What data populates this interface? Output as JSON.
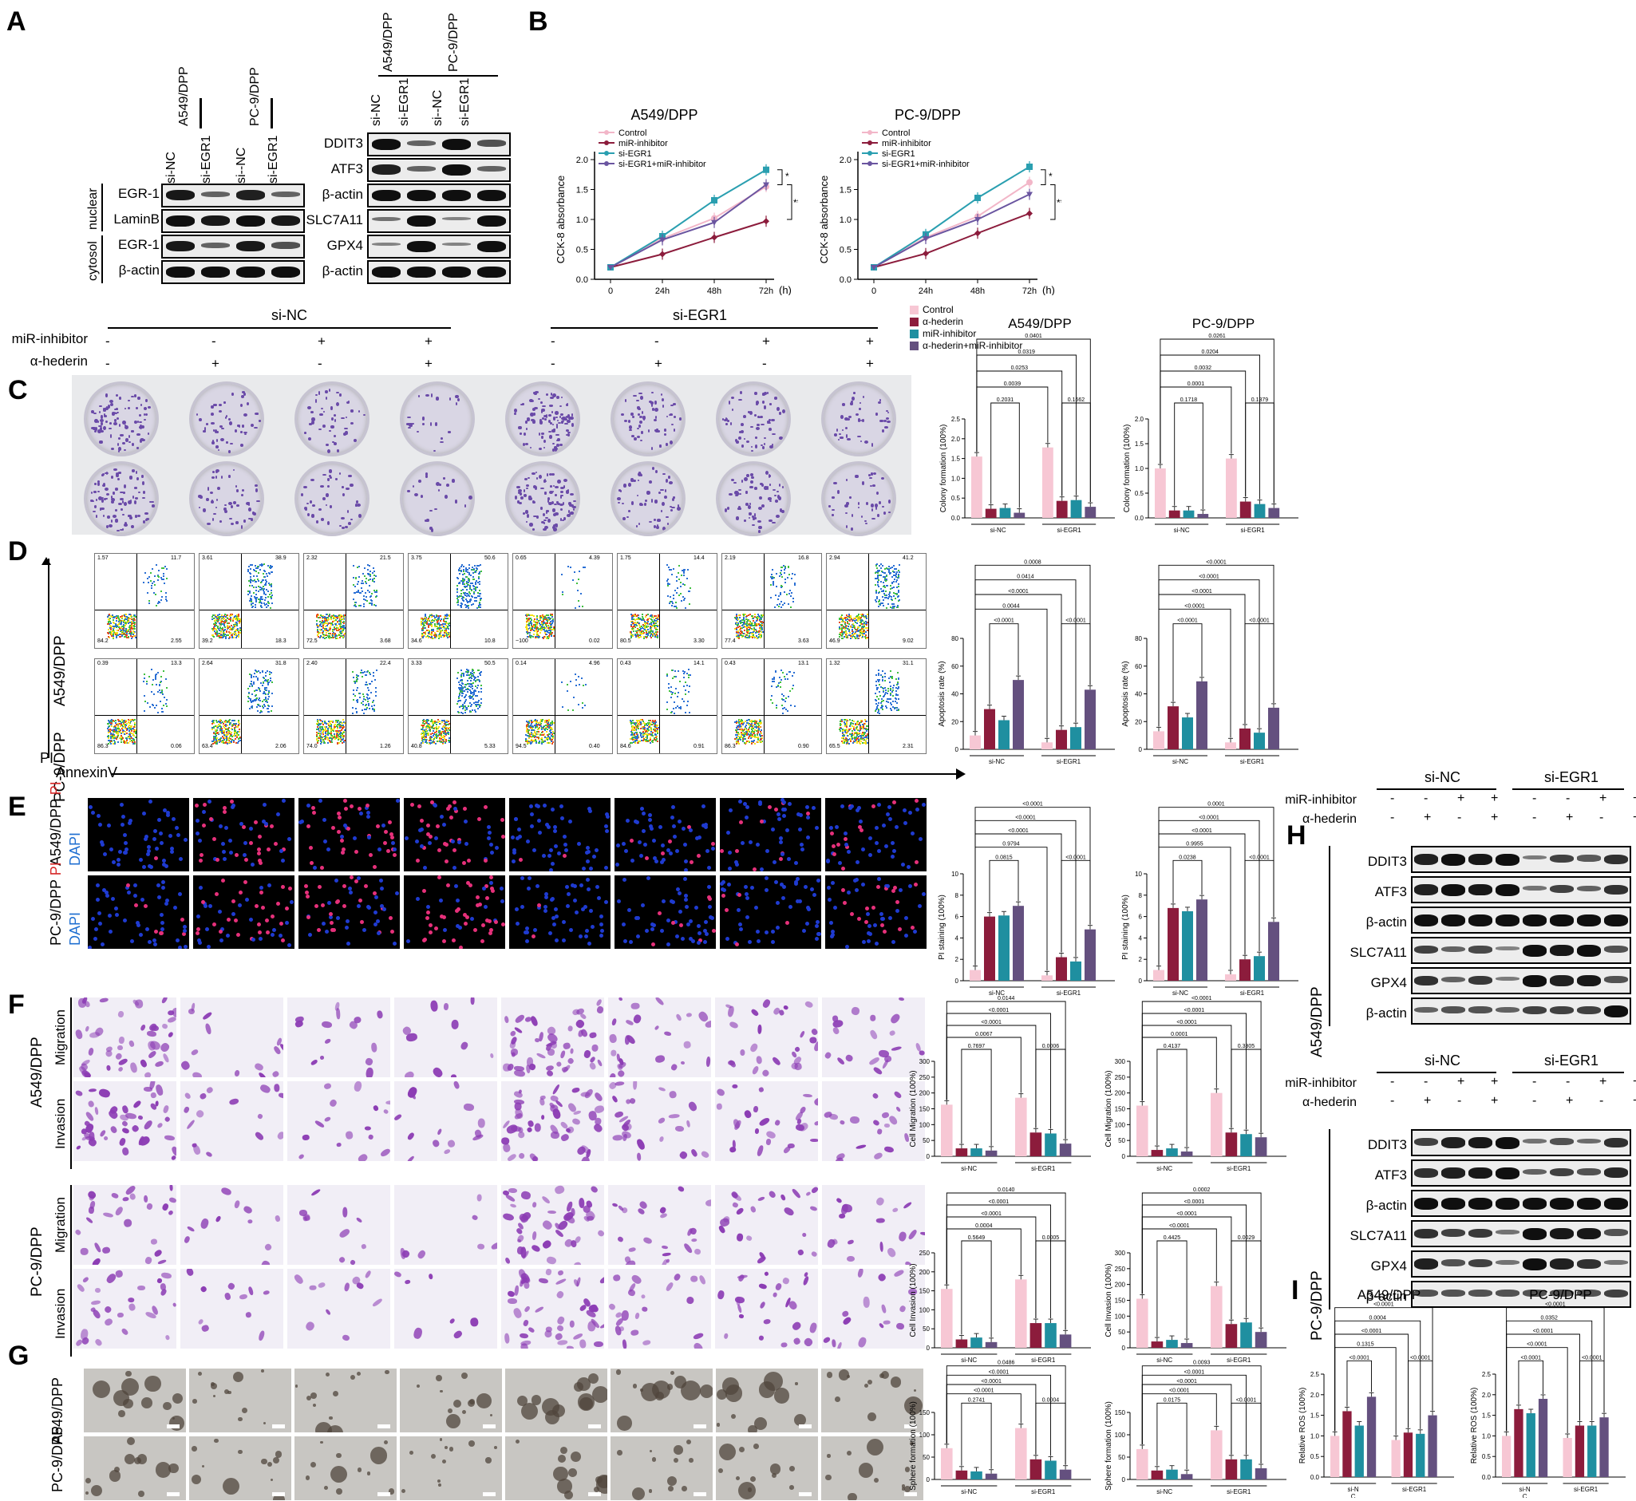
{
  "panels": {
    "A": "A",
    "B": "B",
    "C": "C",
    "D": "D",
    "E": "E",
    "F": "F",
    "G": "G",
    "H": "H",
    "I": "I"
  },
  "common": {
    "si_NC": "si-NC",
    "si_EGR1": "si-EGR1",
    "si_dash_NC": "si--NC",
    "beta_actin": "β-actin",
    "nuclear": "nuclear",
    "cytosol": "cytosol",
    "EGR1": "EGR-1",
    "LaminB": "LaminB",
    "DDIT3": "DDIT3",
    "ATF3": "ATF3",
    "SLC7A11": "SLC7A11",
    "GPX4": "GPX4",
    "A549": "A549/DPP",
    "PC9": "PC-9/DPP",
    "miR_inhibitor": "miR-inhibitor",
    "hederin": "α-hederin",
    "plus": "+",
    "minus": "-",
    "migration": "Migration",
    "invasion": "Invasion",
    "PI": "PI",
    "DAPI": "DAPI",
    "AnnexinV": "AnnexinV",
    "siN": "si-N",
    "C": "C"
  },
  "legendC": [
    "Control",
    "α-hederin",
    "miR-inhibitor",
    "α-hederin+miR-inhibitor"
  ],
  "colors": {
    "control": "#f7c7d4",
    "hederin": "#8c1c3c",
    "inhibitor": "#1f8fa0",
    "combo": "#64507f",
    "cckControl": "#f2b6c8",
    "cckInh": "#8c1c3c",
    "cckEgr": "#2a9fb0",
    "cckCombo": "#6a55a0",
    "crystal": "#6a4aa8"
  },
  "chart_data": [
    {
      "type": "line",
      "title": "A549/DPP",
      "ylabel": "CCK-8 absorbance",
      "xlabel": "(h)",
      "x": [
        "0",
        "24h",
        "48h",
        "72h"
      ],
      "ylim": [
        0,
        2.0
      ],
      "yticks": [
        "0.0",
        "0.5",
        "1.0",
        "1.5",
        "2.0"
      ],
      "series": [
        {
          "name": "Control",
          "values": [
            0.2,
            0.68,
            1.02,
            1.55
          ]
        },
        {
          "name": "miR-inhibitor",
          "values": [
            0.2,
            0.42,
            0.7,
            0.97
          ]
        },
        {
          "name": "si-EGR1",
          "values": [
            0.2,
            0.72,
            1.32,
            1.83
          ]
        },
        {
          "name": "si-EGR1+miR-inhibitor",
          "values": [
            0.2,
            0.66,
            0.95,
            1.58
          ]
        }
      ],
      "sig": [
        "*",
        "**",
        "***"
      ]
    },
    {
      "type": "line",
      "title": "PC-9/DPP",
      "ylabel": "CCK-8 absorbance",
      "xlabel": "(h)",
      "x": [
        "0",
        "24h",
        "48h",
        "72h"
      ],
      "ylim": [
        0,
        2.0
      ],
      "yticks": [
        "0.0",
        "0.5",
        "1.0",
        "1.5",
        "2.0"
      ],
      "series": [
        {
          "name": "Control",
          "values": [
            0.2,
            0.7,
            1.05,
            1.62
          ]
        },
        {
          "name": "miR-inhibitor",
          "values": [
            0.2,
            0.43,
            0.77,
            1.1
          ]
        },
        {
          "name": "si-EGR1",
          "values": [
            0.2,
            0.75,
            1.36,
            1.88
          ]
        },
        {
          "name": "si-EGR1+miR-inhibitor",
          "values": [
            0.2,
            0.68,
            1.0,
            1.42
          ]
        }
      ],
      "sig": [
        "*",
        "**",
        "***"
      ]
    },
    {
      "type": "bar",
      "id": "C1",
      "title": "A549/DPP",
      "ylabel": "Colony formation (100%)",
      "ylim": [
        0,
        2.5
      ],
      "yticks": [
        "0.0",
        "0.5",
        "1.0",
        "1.5",
        "2.0",
        "2.5"
      ],
      "groups": [
        "si-NC",
        "si-EGR1"
      ],
      "values": [
        [
          1.55,
          0.23,
          0.25,
          0.13
        ],
        [
          1.78,
          0.43,
          0.45,
          0.28
        ]
      ],
      "pvals": [
        "0.0401",
        "0.0319",
        "0.0253",
        "0.0039",
        "0.2031",
        "0.1662"
      ]
    },
    {
      "type": "bar",
      "id": "C2",
      "title": "PC-9/DPP",
      "ylabel": "Colony formation (100%)",
      "ylim": [
        0,
        2.0
      ],
      "yticks": [
        "0.0",
        "0.5",
        "1.0",
        "1.5",
        "2.0"
      ],
      "groups": [
        "si-NC",
        "si-EGR1"
      ],
      "values": [
        [
          1.0,
          0.15,
          0.15,
          0.08
        ],
        [
          1.2,
          0.33,
          0.28,
          0.2
        ]
      ],
      "pvals": [
        "0.0261",
        "0.0204",
        "0.0032",
        "0.0001",
        "0.1718",
        "0.1379"
      ]
    },
    {
      "type": "bar",
      "id": "D1",
      "ylabel": "Apoptosis rate (%)",
      "ylim": [
        0,
        80
      ],
      "yticks": [
        "0",
        "20",
        "40",
        "60",
        "80"
      ],
      "groups": [
        "si-NC",
        "si-EGR1"
      ],
      "values": [
        [
          10,
          29,
          21,
          50
        ],
        [
          5,
          14,
          16,
          43
        ]
      ],
      "pvals": [
        "0.0008",
        "0.0414",
        "<0.0001",
        "0.0044",
        "<0.0001",
        "<0.0001"
      ]
    },
    {
      "type": "bar",
      "id": "D2",
      "ylabel": "Apoptosis rate (%)",
      "ylim": [
        0,
        80
      ],
      "yticks": [
        "0",
        "20",
        "40",
        "60",
        "80"
      ],
      "groups": [
        "si-NC",
        "si-EGR1"
      ],
      "values": [
        [
          13,
          31,
          23,
          49
        ],
        [
          5,
          15,
          12,
          30
        ]
      ],
      "pvals": [
        "<0.0001",
        "<0.0001",
        "<0.0001",
        "<0.0001",
        "<0.0001",
        "<0.0001"
      ]
    },
    {
      "type": "bar",
      "id": "E1",
      "ylabel": "PI staining (100%)",
      "ylim": [
        0,
        10
      ],
      "yticks": [
        "0",
        "2",
        "4",
        "6",
        "8",
        "10"
      ],
      "groups": [
        "si-NC",
        "si-EGR1"
      ],
      "values": [
        [
          1.0,
          6.0,
          6.1,
          7.0
        ],
        [
          0.5,
          2.2,
          1.8,
          4.8
        ]
      ],
      "pvals": [
        "<0.0001",
        "<0.0001",
        "<0.0001",
        "0.9794",
        "0.0815",
        "<0.0001"
      ]
    },
    {
      "type": "bar",
      "id": "E2",
      "ylabel": "PI staining (100%)",
      "ylim": [
        0,
        10
      ],
      "yticks": [
        "0",
        "2",
        "4",
        "6",
        "8",
        "10"
      ],
      "groups": [
        "si-NC",
        "si-EGR1"
      ],
      "values": [
        [
          1.0,
          6.8,
          6.5,
          7.6
        ],
        [
          0.6,
          2.0,
          2.3,
          5.5
        ]
      ],
      "pvals": [
        "0.0001",
        "<0.0001",
        "<0.0001",
        "0.9955",
        "0.0238",
        "<0.0001"
      ]
    },
    {
      "type": "bar",
      "id": "F1",
      "ylabel": "Cell Migration (100%)",
      "ylim": [
        0,
        300
      ],
      "yticks": [
        "0",
        "50",
        "100",
        "150",
        "200",
        "250",
        "300"
      ],
      "groups": [
        "si-NC",
        "si-EGR1"
      ],
      "values": [
        [
          163,
          25,
          25,
          18
        ],
        [
          185,
          75,
          72,
          40
        ]
      ],
      "pvals": [
        "0.0144",
        "<0.0001",
        "<0.0001",
        "0.0067",
        "0.7697",
        "0.0006"
      ]
    },
    {
      "type": "bar",
      "id": "F2",
      "ylabel": "Cell Migration (100%)",
      "ylim": [
        0,
        300
      ],
      "yticks": [
        "0",
        "50",
        "100",
        "150",
        "200",
        "250",
        "300"
      ],
      "groups": [
        "si-NC",
        "si-EGR1"
      ],
      "values": [
        [
          160,
          20,
          25,
          15
        ],
        [
          200,
          75,
          70,
          60
        ]
      ],
      "pvals": [
        "<0.0001",
        "<0.0001",
        "<0.0001",
        "0.0001",
        "0.4137",
        "0.3305"
      ]
    },
    {
      "type": "bar",
      "id": "F3",
      "ylabel": "Cell Invasion (100%)",
      "ylim": [
        0,
        250
      ],
      "yticks": [
        "0",
        "50",
        "100",
        "150",
        "200",
        "250"
      ],
      "groups": [
        "si-NC",
        "si-EGR1"
      ],
      "values": [
        [
          155,
          22,
          27,
          15
        ],
        [
          180,
          65,
          65,
          35
        ]
      ],
      "pvals": [
        "0.0140",
        "<0.0001",
        "<0.0001",
        "0.0004",
        "0.5649",
        "0.0005"
      ]
    },
    {
      "type": "bar",
      "id": "F4",
      "ylabel": "Cell Invasion (100%)",
      "ylim": [
        0,
        300
      ],
      "yticks": [
        "0",
        "50",
        "100",
        "150",
        "200",
        "250",
        "300"
      ],
      "groups": [
        "si-NC",
        "si-EGR1"
      ],
      "values": [
        [
          155,
          20,
          25,
          15
        ],
        [
          195,
          75,
          80,
          50
        ]
      ],
      "pvals": [
        "0.0002",
        "<0.0001",
        "<0.0001",
        "<0.0001",
        "0.4425",
        "0.0029"
      ]
    },
    {
      "type": "bar",
      "id": "G1",
      "ylabel": "Sphere formation (100%)",
      "ylim": [
        0,
        150
      ],
      "yticks": [
        "0",
        "50",
        "100",
        "150"
      ],
      "groups": [
        "si-NC",
        "si-EGR1"
      ],
      "values": [
        [
          70,
          20,
          18,
          13
        ],
        [
          115,
          45,
          42,
          22
        ]
      ],
      "pvals": [
        "0.0486",
        "<0.0001",
        "<0.0001",
        "<0.0001",
        "0.2741",
        "0.0004"
      ]
    },
    {
      "type": "bar",
      "id": "G2",
      "ylabel": "Sphere formation (100%)",
      "ylim": [
        0,
        150
      ],
      "yticks": [
        "0",
        "50",
        "100",
        "150"
      ],
      "groups": [
        "si-NC",
        "si-EGR1"
      ],
      "values": [
        [
          68,
          20,
          22,
          12
        ],
        [
          110,
          45,
          45,
          25
        ]
      ],
      "pvals": [
        "0.0093",
        "<0.0001",
        "<0.0001",
        "<0.0001",
        "0.0175",
        "<0.0001"
      ]
    },
    {
      "type": "bar",
      "id": "I1",
      "title": "A549/DPP",
      "ylabel": "Relative ROS (100%)",
      "ylim": [
        0,
        2.5
      ],
      "yticks": [
        "0.0",
        "0.5",
        "1.0",
        "1.5",
        "2.0",
        "2.5"
      ],
      "groups": [
        "si-N\nC",
        "si-EGR1"
      ],
      "values": [
        [
          1.0,
          1.6,
          1.25,
          1.95
        ],
        [
          0.9,
          1.08,
          1.05,
          1.5
        ]
      ],
      "pvals": [
        "<0.0001",
        "0.0004",
        "<0.0001",
        "0.1315",
        "<0.0001",
        "<0.0001"
      ]
    },
    {
      "type": "bar",
      "id": "I2",
      "title": "PC-9/DPP",
      "ylabel": "Relative ROS (100%)",
      "ylim": [
        0,
        2.5
      ],
      "yticks": [
        "0.0",
        "0.5",
        "1.0",
        "1.5",
        "2.0",
        "2.5"
      ],
      "groups": [
        "si-N\nC",
        "si-EGR1"
      ],
      "values": [
        [
          1.0,
          1.65,
          1.55,
          1.9
        ],
        [
          0.95,
          1.25,
          1.25,
          1.45
        ]
      ],
      "pvals": [
        "<0.0001",
        "0.0352",
        "<0.0001",
        "<0.0001",
        "<0.0001",
        "<0.0001"
      ]
    }
  ],
  "flow_quadrants": {
    "A549": [
      [
        "1.57",
        "11.7",
        "84.2",
        "2.55"
      ],
      [
        "3.61",
        "38.9",
        "39.2",
        "18.3"
      ],
      [
        "2.32",
        "21.5",
        "72.5",
        "3.68"
      ],
      [
        "3.75",
        "50.6",
        "34.6",
        "10.8"
      ],
      [
        "0.65",
        "4.39",
        "~100",
        "0.02"
      ],
      [
        "1.75",
        "14.4",
        "80.5",
        "3.30"
      ],
      [
        "2.19",
        "16.8",
        "77.4",
        "3.63"
      ],
      [
        "2.94",
        "41.2",
        "46.9",
        "9.02"
      ]
    ],
    "PC9": [
      [
        "0.39",
        "13.3",
        "86.3",
        "0.06"
      ],
      [
        "2.64",
        "31.8",
        "63.4",
        "2.06"
      ],
      [
        "2.40",
        "22.4",
        "74.0",
        "1.26"
      ],
      [
        "3.33",
        "50.5",
        "40.8",
        "5.33"
      ],
      [
        "0.14",
        "4.96",
        "94.5",
        "0.40"
      ],
      [
        "0.43",
        "14.1",
        "84.6",
        "0.91"
      ],
      [
        "0.43",
        "13.1",
        "86.3",
        "0.90"
      ],
      [
        "1.32",
        "31.1",
        "65.5",
        "2.31"
      ]
    ]
  }
}
